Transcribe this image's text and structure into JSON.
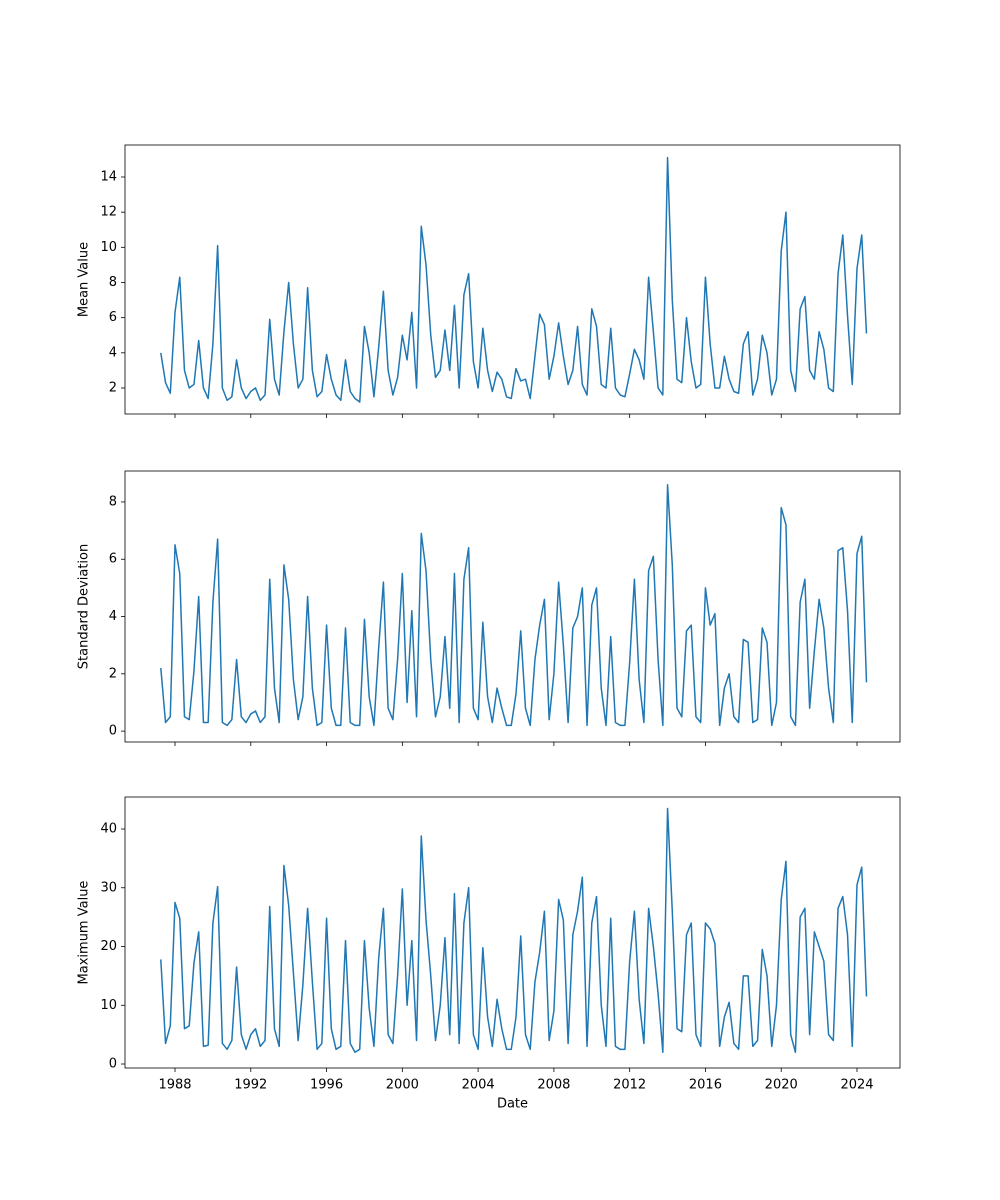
{
  "chart_data": [
    {
      "type": "line",
      "ylabel": "Mean Value",
      "color": "#1f77b4",
      "xlim": [
        1985.36,
        2026.27
      ],
      "xticks": [
        1988,
        1992,
        1996,
        2000,
        2004,
        2008,
        2012,
        2016,
        2020,
        2024
      ],
      "ylim": [
        0.52,
        15.82
      ],
      "yticks": [
        2,
        4,
        6,
        8,
        10,
        12,
        14
      ],
      "x": [
        1987.25,
        1987.5,
        1987.75,
        1988,
        1988.25,
        1988.5,
        1988.75,
        1989,
        1989.25,
        1989.5,
        1989.75,
        1990,
        1990.25,
        1990.5,
        1990.75,
        1991,
        1991.25,
        1991.5,
        1991.75,
        1992,
        1992.25,
        1992.5,
        1992.75,
        1993,
        1993.25,
        1993.5,
        1993.75,
        1994,
        1994.25,
        1994.5,
        1994.75,
        1995,
        1995.25,
        1995.5,
        1995.75,
        1996,
        1996.25,
        1996.5,
        1996.75,
        1997,
        1997.25,
        1997.5,
        1997.75,
        1998,
        1998.25,
        1998.5,
        1998.75,
        1999,
        1999.25,
        1999.5,
        1999.75,
        2000,
        2000.25,
        2000.5,
        2000.75,
        2001,
        2001.25,
        2001.5,
        2001.75,
        2002,
        2002.25,
        2002.5,
        2002.75,
        2003,
        2003.25,
        2003.5,
        2003.75,
        2004,
        2004.25,
        2004.5,
        2004.75,
        2005,
        2005.25,
        2005.5,
        2005.75,
        2006,
        2006.25,
        2006.5,
        2006.75,
        2007,
        2007.25,
        2007.5,
        2007.75,
        2008,
        2008.25,
        2008.5,
        2008.75,
        2009,
        2009.25,
        2009.5,
        2009.75,
        2010,
        2010.25,
        2010.5,
        2010.75,
        2011,
        2011.25,
        2011.5,
        2011.75,
        2012,
        2012.25,
        2012.5,
        2012.75,
        2013,
        2013.25,
        2013.5,
        2013.75,
        2014,
        2014.25,
        2014.5,
        2014.75,
        2015,
        2015.25,
        2015.5,
        2015.75,
        2016,
        2016.25,
        2016.5,
        2016.75,
        2017,
        2017.25,
        2017.5,
        2017.75,
        2018,
        2018.25,
        2018.5,
        2018.75,
        2019,
        2019.25,
        2019.5,
        2019.75,
        2020,
        2020.25,
        2020.5,
        2020.75,
        2021,
        2021.25,
        2021.5,
        2021.75,
        2022,
        2022.25,
        2022.5,
        2022.75,
        2023,
        2023.25,
        2023.5,
        2023.75,
        2024,
        2024.25,
        2024.5
      ],
      "values": [
        4.0,
        2.3,
        1.7,
        6.3,
        8.3,
        3.0,
        2.0,
        2.2,
        4.7,
        2.0,
        1.4,
        4.5,
        10.1,
        2.0,
        1.3,
        1.5,
        3.6,
        2.0,
        1.4,
        1.8,
        2.0,
        1.3,
        1.6,
        5.9,
        2.5,
        1.6,
        5.2,
        8.0,
        4.5,
        2.0,
        2.5,
        7.7,
        3.0,
        1.5,
        1.8,
        3.9,
        2.5,
        1.6,
        1.3,
        3.6,
        1.8,
        1.4,
        1.2,
        5.5,
        4.0,
        1.5,
        4.3,
        7.5,
        3.0,
        1.6,
        2.6,
        5.0,
        3.6,
        6.3,
        2.0,
        11.2,
        9.0,
        5.0,
        2.6,
        3.0,
        5.3,
        3.0,
        6.7,
        2.0,
        7.3,
        8.5,
        3.5,
        2.0,
        5.4,
        3.0,
        1.8,
        2.9,
        2.5,
        1.5,
        1.4,
        3.1,
        2.4,
        2.5,
        1.4,
        3.8,
        6.2,
        5.6,
        2.5,
        3.8,
        5.7,
        3.8,
        2.2,
        3.0,
        5.5,
        2.2,
        1.6,
        6.5,
        5.5,
        2.2,
        2.0,
        5.4,
        2.0,
        1.6,
        1.5,
        2.8,
        4.2,
        3.6,
        2.5,
        8.3,
        5.2,
        2.0,
        1.6,
        15.1,
        7.0,
        2.5,
        2.3,
        6.0,
        3.5,
        2.0,
        2.2,
        8.3,
        4.5,
        2.0,
        2.0,
        3.8,
        2.5,
        1.8,
        1.7,
        4.5,
        5.2,
        1.6,
        2.5,
        5.0,
        4.0,
        1.6,
        2.5,
        9.8,
        12.0,
        3.0,
        1.8,
        6.5,
        7.2,
        3.0,
        2.5,
        5.2,
        4.2,
        2.0,
        1.8,
        8.5,
        10.7,
        6.1,
        2.2,
        8.8,
        10.7,
        5.1
      ]
    },
    {
      "type": "line",
      "ylabel": "Standard Deviation",
      "color": "#1f77b4",
      "xlim": [
        1985.36,
        2026.27
      ],
      "xticks": [
        1988,
        1992,
        1996,
        2000,
        2004,
        2008,
        2012,
        2016,
        2020,
        2024
      ],
      "ylim": [
        -0.38,
        9.08
      ],
      "yticks": [
        0,
        2,
        4,
        6,
        8
      ],
      "x": [
        1987.25,
        1987.5,
        1987.75,
        1988,
        1988.25,
        1988.5,
        1988.75,
        1989,
        1989.25,
        1989.5,
        1989.75,
        1990,
        1990.25,
        1990.5,
        1990.75,
        1991,
        1991.25,
        1991.5,
        1991.75,
        1992,
        1992.25,
        1992.5,
        1992.75,
        1993,
        1993.25,
        1993.5,
        1993.75,
        1994,
        1994.25,
        1994.5,
        1994.75,
        1995,
        1995.25,
        1995.5,
        1995.75,
        1996,
        1996.25,
        1996.5,
        1996.75,
        1997,
        1997.25,
        1997.5,
        1997.75,
        1998,
        1998.25,
        1998.5,
        1998.75,
        1999,
        1999.25,
        1999.5,
        1999.75,
        2000,
        2000.25,
        2000.5,
        2000.75,
        2001,
        2001.25,
        2001.5,
        2001.75,
        2002,
        2002.25,
        2002.5,
        2002.75,
        2003,
        2003.25,
        2003.5,
        2003.75,
        2004,
        2004.25,
        2004.5,
        2004.75,
        2005,
        2005.25,
        2005.5,
        2005.75,
        2006,
        2006.25,
        2006.5,
        2006.75,
        2007,
        2007.25,
        2007.5,
        2007.75,
        2008,
        2008.25,
        2008.5,
        2008.75,
        2009,
        2009.25,
        2009.5,
        2009.75,
        2010,
        2010.25,
        2010.5,
        2010.75,
        2011,
        2011.25,
        2011.5,
        2011.75,
        2012,
        2012.25,
        2012.5,
        2012.75,
        2013,
        2013.25,
        2013.5,
        2013.75,
        2014,
        2014.25,
        2014.5,
        2014.75,
        2015,
        2015.25,
        2015.5,
        2015.75,
        2016,
        2016.25,
        2016.5,
        2016.75,
        2017,
        2017.25,
        2017.5,
        2017.75,
        2018,
        2018.25,
        2018.5,
        2018.75,
        2019,
        2019.25,
        2019.5,
        2019.75,
        2020,
        2020.25,
        2020.5,
        2020.75,
        2021,
        2021.25,
        2021.5,
        2021.75,
        2022,
        2022.25,
        2022.5,
        2022.75,
        2023,
        2023.25,
        2023.5,
        2023.75,
        2024,
        2024.25,
        2024.5
      ],
      "values": [
        2.2,
        0.3,
        0.5,
        6.5,
        5.5,
        0.5,
        0.4,
        2.1,
        4.7,
        0.3,
        0.3,
        4.5,
        6.7,
        0.3,
        0.2,
        0.4,
        2.5,
        0.5,
        0.3,
        0.6,
        0.7,
        0.3,
        0.5,
        5.3,
        1.5,
        0.3,
        5.8,
        4.6,
        1.8,
        0.4,
        1.2,
        4.7,
        1.5,
        0.2,
        0.3,
        3.7,
        0.8,
        0.2,
        0.2,
        3.6,
        0.3,
        0.2,
        0.2,
        3.9,
        1.2,
        0.2,
        2.9,
        5.2,
        0.8,
        0.4,
        2.5,
        5.5,
        1.0,
        4.2,
        0.5,
        6.9,
        5.6,
        2.5,
        0.5,
        1.2,
        3.3,
        0.8,
        5.5,
        0.3,
        5.3,
        6.4,
        0.8,
        0.4,
        3.8,
        1.2,
        0.3,
        1.5,
        0.8,
        0.2,
        0.2,
        1.3,
        3.5,
        0.8,
        0.2,
        2.5,
        3.7,
        4.6,
        0.4,
        2.0,
        5.2,
        3.0,
        0.3,
        3.6,
        4.0,
        5.0,
        0.2,
        4.4,
        5.0,
        1.5,
        0.2,
        3.3,
        0.3,
        0.2,
        0.2,
        2.4,
        5.3,
        1.8,
        0.3,
        5.6,
        6.1,
        2.5,
        0.2,
        8.6,
        5.8,
        0.8,
        0.5,
        3.5,
        3.7,
        0.5,
        0.3,
        5.0,
        3.7,
        4.1,
        0.2,
        1.5,
        2.0,
        0.5,
        0.3,
        3.2,
        3.1,
        0.3,
        0.4,
        3.6,
        3.1,
        0.2,
        1.0,
        7.8,
        7.2,
        0.5,
        0.2,
        4.5,
        5.3,
        0.8,
        2.8,
        4.6,
        3.6,
        1.5,
        0.3,
        6.3,
        6.4,
        4.2,
        0.3,
        6.2,
        6.8,
        1.7
      ]
    },
    {
      "type": "line",
      "ylabel": "Maximum Value",
      "xlabel": "Date",
      "color": "#1f77b4",
      "xlim": [
        1985.36,
        2026.27
      ],
      "xticks": [
        1988,
        1992,
        1996,
        2000,
        2004,
        2008,
        2012,
        2016,
        2020,
        2024
      ],
      "ylim": [
        -0.68,
        45.45
      ],
      "yticks": [
        0,
        10,
        20,
        30,
        40
      ],
      "x": [
        1987.25,
        1987.5,
        1987.75,
        1988,
        1988.25,
        1988.5,
        1988.75,
        1989,
        1989.25,
        1989.5,
        1989.75,
        1990,
        1990.25,
        1990.5,
        1990.75,
        1991,
        1991.25,
        1991.5,
        1991.75,
        1992,
        1992.25,
        1992.5,
        1992.75,
        1993,
        1993.25,
        1993.5,
        1993.75,
        1994,
        1994.25,
        1994.5,
        1994.75,
        1995,
        1995.25,
        1995.5,
        1995.75,
        1996,
        1996.25,
        1996.5,
        1996.75,
        1997,
        1997.25,
        1997.5,
        1997.75,
        1998,
        1998.25,
        1998.5,
        1998.75,
        1999,
        1999.25,
        1999.5,
        1999.75,
        2000,
        2000.25,
        2000.5,
        2000.75,
        2001,
        2001.25,
        2001.5,
        2001.75,
        2002,
        2002.25,
        2002.5,
        2002.75,
        2003,
        2003.25,
        2003.5,
        2003.75,
        2004,
        2004.25,
        2004.5,
        2004.75,
        2005,
        2005.25,
        2005.5,
        2005.75,
        2006,
        2006.25,
        2006.5,
        2006.75,
        2007,
        2007.25,
        2007.5,
        2007.75,
        2008,
        2008.25,
        2008.5,
        2008.75,
        2009,
        2009.25,
        2009.5,
        2009.75,
        2010,
        2010.25,
        2010.5,
        2010.75,
        2011,
        2011.25,
        2011.5,
        2011.75,
        2012,
        2012.25,
        2012.5,
        2012.75,
        2013,
        2013.25,
        2013.5,
        2013.75,
        2014,
        2014.25,
        2014.5,
        2014.75,
        2015,
        2015.25,
        2015.5,
        2015.75,
        2016,
        2016.25,
        2016.5,
        2016.75,
        2017,
        2017.25,
        2017.5,
        2017.75,
        2018,
        2018.25,
        2018.5,
        2018.75,
        2019,
        2019.25,
        2019.5,
        2019.75,
        2020,
        2020.25,
        2020.5,
        2020.75,
        2021,
        2021.25,
        2021.5,
        2021.75,
        2022,
        2022.25,
        2022.5,
        2022.75,
        2023,
        2023.25,
        2023.5,
        2023.75,
        2024,
        2024.25,
        2024.5
      ],
      "values": [
        17.8,
        3.5,
        6.5,
        27.5,
        24.8,
        6.0,
        6.5,
        17.2,
        22.5,
        3.0,
        3.2,
        24.0,
        30.2,
        3.5,
        2.5,
        4.0,
        16.5,
        5.0,
        2.5,
        5.0,
        6.0,
        3.0,
        4.0,
        26.8,
        6.0,
        3.0,
        33.8,
        27.0,
        15.5,
        4.0,
        13.5,
        26.5,
        14.0,
        2.5,
        3.5,
        24.8,
        6.0,
        2.5,
        3.0,
        21.0,
        3.5,
        2.0,
        2.5,
        21.0,
        9.5,
        3.0,
        18.0,
        26.5,
        5.0,
        3.5,
        15.0,
        29.8,
        10.0,
        21.0,
        4.0,
        38.8,
        24.5,
        15.0,
        4.0,
        10.0,
        21.5,
        5.0,
        29.0,
        3.5,
        24.0,
        30.0,
        5.0,
        2.5,
        19.8,
        8.0,
        3.0,
        11.0,
        6.0,
        2.5,
        2.5,
        8.0,
        21.8,
        5.0,
        2.5,
        14.0,
        19.0,
        26.0,
        4.0,
        9.0,
        28.0,
        24.5,
        3.5,
        22.0,
        26.0,
        31.8,
        3.0,
        24.0,
        28.5,
        10.0,
        3.0,
        24.8,
        3.0,
        2.5,
        2.5,
        17.5,
        26.0,
        11.0,
        3.5,
        26.5,
        20.0,
        12.0,
        2.0,
        43.5,
        26.0,
        6.0,
        5.5,
        22.0,
        24.0,
        5.0,
        3.0,
        24.0,
        23.0,
        20.5,
        3.0,
        8.0,
        10.5,
        3.5,
        2.5,
        15.0,
        15.0,
        3.0,
        4.0,
        19.5,
        15.0,
        3.0,
        10.0,
        28.0,
        34.5,
        5.0,
        2.0,
        25.0,
        26.5,
        5.0,
        22.5,
        20.0,
        17.5,
        5.0,
        4.0,
        26.5,
        28.5,
        22.0,
        3.0,
        30.5,
        33.5,
        11.5
      ]
    }
  ]
}
